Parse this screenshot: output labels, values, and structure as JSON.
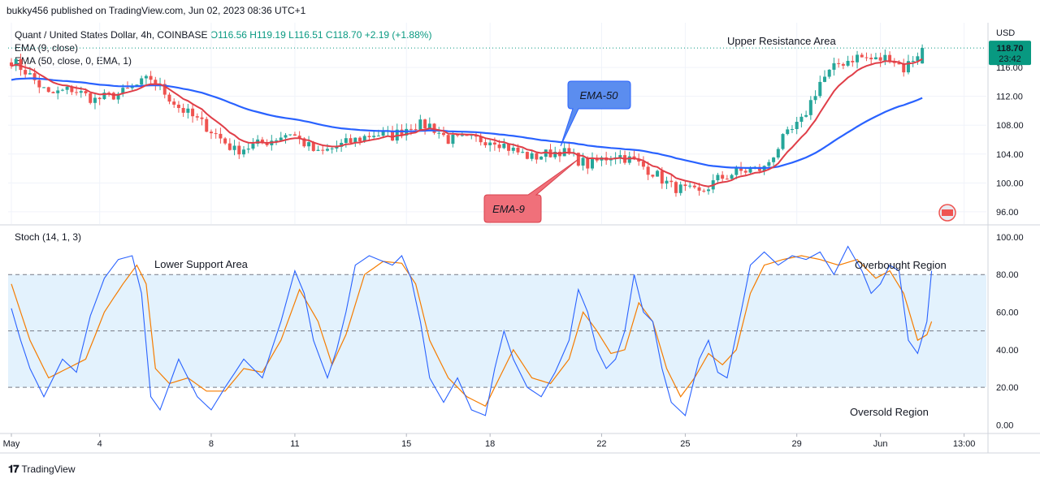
{
  "header": {
    "published": "bukky456 published on TradingView.com, Jun 02, 2023 08:36 UTC+1"
  },
  "legend": {
    "symbol": "Quant / United States Dollar, 4h, COINBASE",
    "ohlc": "O116.56  H119.19  L116.51  C118.70  +2.19 (+1.88%)",
    "ema9": "EMA (9, close)",
    "ema50": "EMA (50, close, 0, EMA, 1)"
  },
  "stoch_title": "Stoch (14, 1, 3)",
  "footer": {
    "brand": "TradingView"
  },
  "colors": {
    "up": "#26a69a",
    "down": "#ef5350",
    "ema9": "#e03e48",
    "ema50": "#2962ff",
    "stochK": "#2962ff",
    "stochD": "#f57c00",
    "band": "#e3f2fd",
    "last": "#089981"
  },
  "chart_data": [
    {
      "type": "candlestick",
      "currency_label": "USD",
      "last_price": "118.70",
      "countdown": "23:42",
      "y_ticks": [
        "116.00",
        "112.00",
        "108.00",
        "104.00",
        "100.00",
        "96.00"
      ],
      "y_tick_values": [
        116,
        112,
        108,
        104,
        100,
        96
      ],
      "ylim": [
        94.3,
        122.2
      ],
      "x_ticks": [
        "May",
        "4",
        "8",
        "11",
        "15",
        "18",
        "22",
        "25",
        "29",
        "Jun",
        "13:00"
      ],
      "x_tick_bar_index": [
        0,
        19,
        43,
        61,
        85,
        103,
        127,
        145,
        169,
        187,
        205
      ],
      "annotations": [
        "Upper Resistance Area",
        "EMA-50",
        "EMA-9"
      ],
      "series_ema9": {
        "name": "EMA (9, close)"
      },
      "series_ema50": {
        "name": "EMA (50, close, 0, EMA, 1)"
      },
      "close_anchors": [
        [
          0,
          117.0
        ],
        [
          3,
          115.5
        ],
        [
          8,
          112.2
        ],
        [
          13,
          113.0
        ],
        [
          18,
          111.5
        ],
        [
          24,
          112.5
        ],
        [
          30,
          114.5
        ],
        [
          36,
          110.5
        ],
        [
          42,
          107.8
        ],
        [
          48,
          104.5
        ],
        [
          54,
          105.5
        ],
        [
          60,
          107.0
        ],
        [
          66,
          104.0
        ],
        [
          72,
          105.5
        ],
        [
          78,
          106.8
        ],
        [
          82,
          106.5
        ],
        [
          86,
          108.0
        ],
        [
          90,
          108.0
        ],
        [
          94,
          106.0
        ],
        [
          100,
          106.0
        ],
        [
          104,
          106.0
        ],
        [
          108,
          104.5
        ],
        [
          112,
          103.5
        ],
        [
          118,
          104.5
        ],
        [
          124,
          102.5
        ],
        [
          130,
          104.0
        ],
        [
          134,
          103.0
        ],
        [
          138,
          101.5
        ],
        [
          142,
          99.5
        ],
        [
          148,
          98.5
        ],
        [
          152,
          100.5
        ],
        [
          156,
          101.5
        ],
        [
          162,
          102.0
        ],
        [
          166,
          106.0
        ],
        [
          170,
          108.5
        ],
        [
          174,
          114.0
        ],
        [
          178,
          116.5
        ],
        [
          182,
          117.5
        ],
        [
          186,
          117.0
        ],
        [
          189,
          117.5
        ],
        [
          192,
          115.8
        ],
        [
          196,
          118.7
        ]
      ]
    },
    {
      "type": "line",
      "title": "Stoch (14, 1, 3)",
      "y_ticks": [
        "100.00",
        "80.00",
        "60.00",
        "40.00",
        "20.00",
        "0.00"
      ],
      "y_tick_values": [
        100,
        80,
        60,
        40,
        20,
        0
      ],
      "ylim": [
        -3.7,
        106
      ],
      "bands": [
        20,
        50,
        80
      ],
      "annotations": [
        "Lower Support Area",
        "Overbought Region",
        "Oversold Region"
      ],
      "k_anchors": [
        [
          0,
          62
        ],
        [
          2,
          45
        ],
        [
          4,
          30
        ],
        [
          7,
          15
        ],
        [
          11,
          35
        ],
        [
          14,
          28
        ],
        [
          17,
          58
        ],
        [
          20,
          78
        ],
        [
          23,
          88
        ],
        [
          26,
          90
        ],
        [
          28,
          70
        ],
        [
          30,
          15
        ],
        [
          32,
          8
        ],
        [
          36,
          35
        ],
        [
          40,
          15
        ],
        [
          43,
          8
        ],
        [
          46,
          20
        ],
        [
          50,
          35
        ],
        [
          54,
          25
        ],
        [
          58,
          55
        ],
        [
          61,
          82
        ],
        [
          63,
          70
        ],
        [
          65,
          45
        ],
        [
          68,
          25
        ],
        [
          70,
          40
        ],
        [
          72,
          60
        ],
        [
          74,
          85
        ],
        [
          77,
          90
        ],
        [
          79,
          88
        ],
        [
          82,
          85
        ],
        [
          84,
          90
        ],
        [
          86,
          78
        ],
        [
          88,
          55
        ],
        [
          90,
          25
        ],
        [
          93,
          12
        ],
        [
          96,
          25
        ],
        [
          99,
          8
        ],
        [
          102,
          5
        ],
        [
          104,
          30
        ],
        [
          106,
          50
        ],
        [
          108,
          35
        ],
        [
          111,
          20
        ],
        [
          114,
          15
        ],
        [
          117,
          28
        ],
        [
          120,
          45
        ],
        [
          122,
          72
        ],
        [
          124,
          60
        ],
        [
          126,
          40
        ],
        [
          128,
          30
        ],
        [
          130,
          35
        ],
        [
          132,
          50
        ],
        [
          134,
          80
        ],
        [
          136,
          60
        ],
        [
          138,
          55
        ],
        [
          140,
          30
        ],
        [
          142,
          12
        ],
        [
          145,
          5
        ],
        [
          148,
          35
        ],
        [
          150,
          45
        ],
        [
          152,
          28
        ],
        [
          154,
          25
        ],
        [
          157,
          60
        ],
        [
          159,
          85
        ],
        [
          162,
          92
        ],
        [
          165,
          85
        ],
        [
          168,
          90
        ],
        [
          171,
          88
        ],
        [
          174,
          92
        ],
        [
          177,
          80
        ],
        [
          180,
          95
        ],
        [
          183,
          82
        ],
        [
          185,
          70
        ],
        [
          187,
          75
        ],
        [
          189,
          85
        ],
        [
          191,
          82
        ],
        [
          193,
          45
        ],
        [
          195,
          38
        ],
        [
          197,
          55
        ],
        [
          198,
          82
        ]
      ],
      "d_anchors": [
        [
          0,
          75
        ],
        [
          4,
          45
        ],
        [
          8,
          25
        ],
        [
          12,
          30
        ],
        [
          16,
          35
        ],
        [
          20,
          60
        ],
        [
          24,
          75
        ],
        [
          27,
          85
        ],
        [
          29,
          75
        ],
        [
          31,
          30
        ],
        [
          34,
          22
        ],
        [
          38,
          25
        ],
        [
          42,
          18
        ],
        [
          46,
          18
        ],
        [
          50,
          30
        ],
        [
          54,
          28
        ],
        [
          58,
          45
        ],
        [
          62,
          72
        ],
        [
          66,
          55
        ],
        [
          69,
          32
        ],
        [
          72,
          48
        ],
        [
          76,
          80
        ],
        [
          80,
          87
        ],
        [
          84,
          86
        ],
        [
          87,
          75
        ],
        [
          90,
          45
        ],
        [
          94,
          25
        ],
        [
          98,
          15
        ],
        [
          102,
          10
        ],
        [
          105,
          25
        ],
        [
          108,
          40
        ],
        [
          112,
          25
        ],
        [
          116,
          22
        ],
        [
          120,
          35
        ],
        [
          123,
          60
        ],
        [
          126,
          50
        ],
        [
          129,
          38
        ],
        [
          132,
          40
        ],
        [
          135,
          65
        ],
        [
          138,
          55
        ],
        [
          141,
          30
        ],
        [
          144,
          15
        ],
        [
          147,
          25
        ],
        [
          150,
          38
        ],
        [
          153,
          32
        ],
        [
          156,
          40
        ],
        [
          159,
          70
        ],
        [
          162,
          85
        ],
        [
          166,
          88
        ],
        [
          170,
          90
        ],
        [
          174,
          88
        ],
        [
          178,
          85
        ],
        [
          182,
          88
        ],
        [
          186,
          78
        ],
        [
          189,
          82
        ],
        [
          192,
          70
        ],
        [
          195,
          45
        ],
        [
          197,
          48
        ],
        [
          198,
          55
        ]
      ]
    }
  ]
}
